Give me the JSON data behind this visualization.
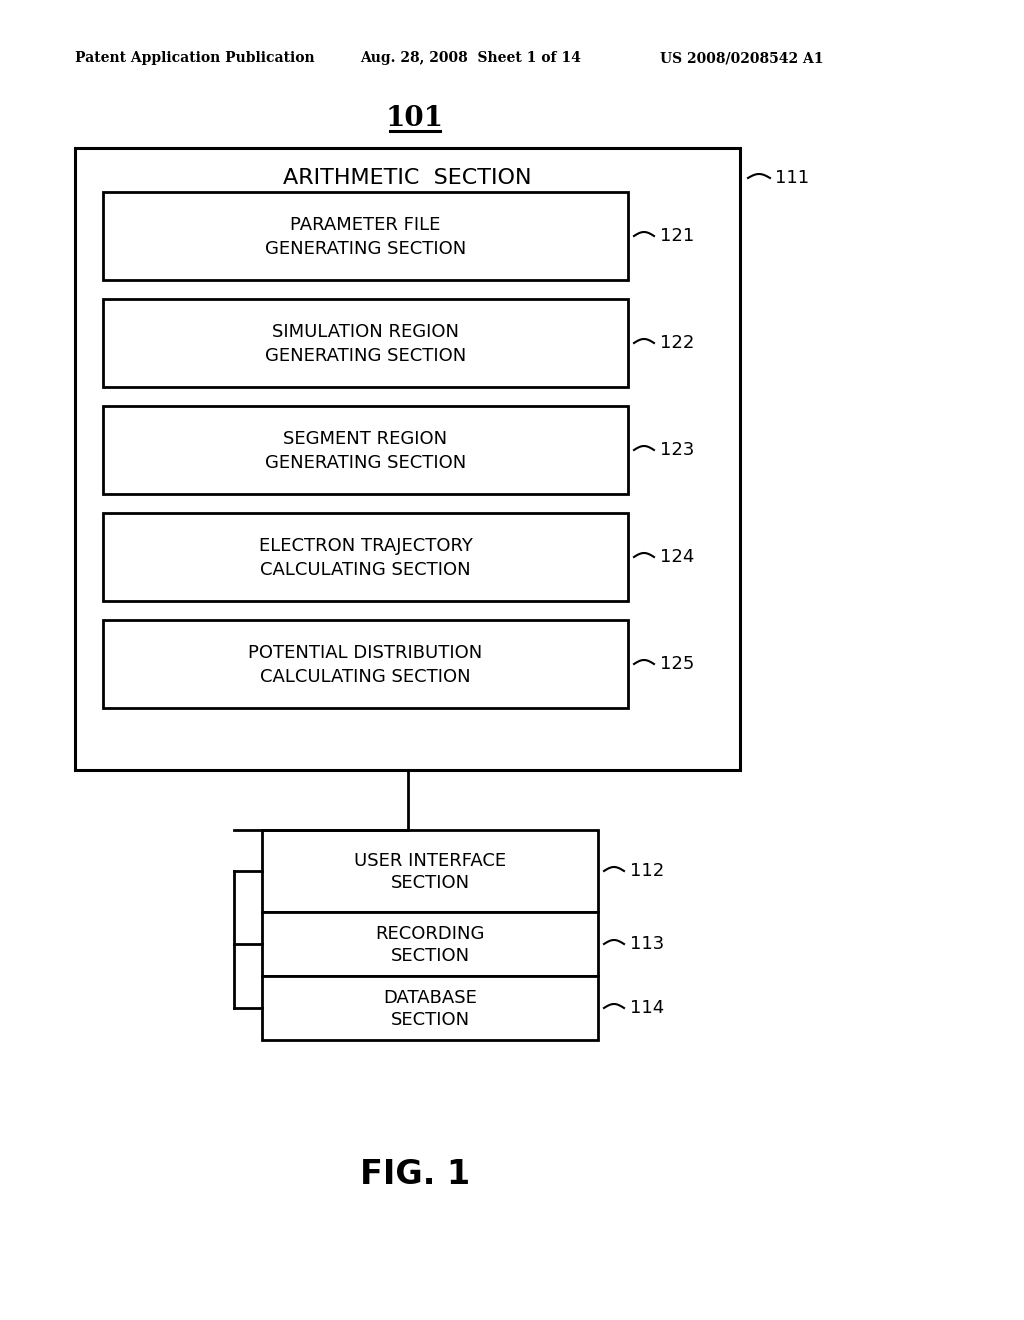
{
  "background_color": "#ffffff",
  "header_left": "Patent Application Publication",
  "header_mid": "Aug. 28, 2008  Sheet 1 of 14",
  "header_right": "US 2008/0208542 A1",
  "figure_label": "FIG. 1",
  "main_label": "101",
  "outer_box_label": "111",
  "outer_box_title": "ARITHMETIC  SECTION",
  "inner_boxes": [
    {
      "label": "121",
      "lines": [
        "PARAMETER FILE",
        "GENERATING SECTION"
      ]
    },
    {
      "label": "122",
      "lines": [
        "SIMULATION REGION",
        "GENERATING SECTION"
      ]
    },
    {
      "label": "123",
      "lines": [
        "SEGMENT REGION",
        "GENERATING SECTION"
      ]
    },
    {
      "label": "124",
      "lines": [
        "ELECTRON TRAJECTORY",
        "CALCULATING SECTION"
      ]
    },
    {
      "label": "125",
      "lines": [
        "POTENTIAL DISTRIBUTION",
        "CALCULATING SECTION"
      ]
    }
  ],
  "lower_boxes": [
    {
      "label": "112",
      "lines": [
        "USER INTERFACE",
        "SECTION"
      ]
    },
    {
      "label": "113",
      "lines": [
        "RECORDING",
        "SECTION"
      ]
    },
    {
      "label": "114",
      "lines": [
        "DATABASE",
        "SECTION"
      ]
    }
  ],
  "colors": {
    "box_face": "#ffffff",
    "box_edge": "#000000",
    "text": "#000000",
    "line": "#000000"
  }
}
